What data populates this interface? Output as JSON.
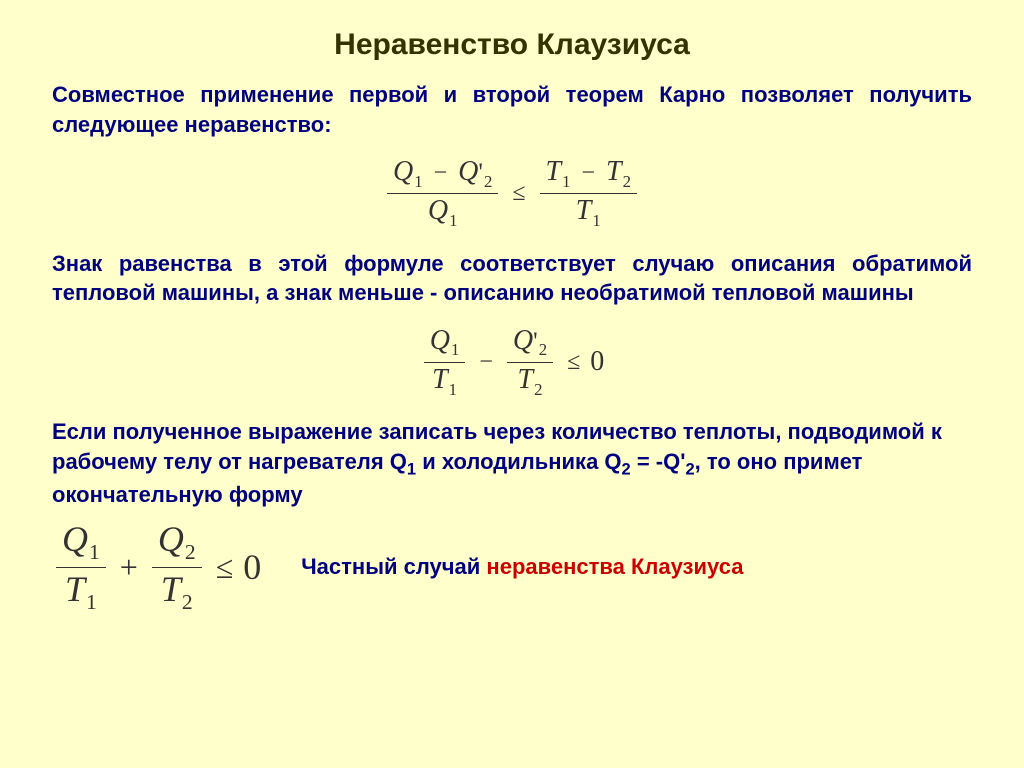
{
  "colors": {
    "background": "#ffffcc",
    "title": "#333300",
    "text": "#000080",
    "highlight": "#cc0000",
    "formula": "#333333"
  },
  "typography": {
    "title_fontsize": 30,
    "body_fontsize": 22,
    "formula_fontsize": 28,
    "final_formula_fontsize": 36,
    "font_family_body": "Arial",
    "font_family_formula": "Times New Roman"
  },
  "title": "Неравенство Клаузиуса",
  "para1": "Совместное применение первой и второй теорем Карно позволяет получить следующее неравенство:",
  "formula1": {
    "left_num_a": "Q",
    "left_num_a_sub": "1",
    "left_num_op": "−",
    "left_num_b": "Q",
    "left_num_b_prime": "'",
    "left_num_b_sub": "2",
    "left_den": "Q",
    "left_den_sub": "1",
    "cmp": "≤",
    "right_num_a": "T",
    "right_num_a_sub": "1",
    "right_num_op": "−",
    "right_num_b": "T",
    "right_num_b_sub": "2",
    "right_den": "T",
    "right_den_sub": "1"
  },
  "para2": "Знак равенства в этой формуле соответствует случаю описания обратимой тепловой машины, а знак меньше - описанию необратимой тепловой машины",
  "formula2": {
    "a_num": "Q",
    "a_num_sub": "1",
    "a_den": "T",
    "a_den_sub": "1",
    "mid_op": "−",
    "b_num": "Q",
    "b_num_prime": "'",
    "b_num_sub": "2",
    "b_den": "T",
    "b_den_sub": "2",
    "cmp": "≤",
    "rhs": "0"
  },
  "para3_a": "Если полученное выражение записать через количество теплоты, подводимой к рабочему телу от нагревателя Q",
  "para3_a_sub": "1",
  "para3_b": " и холодильника Q",
  "para3_b_sub": "2",
  "para3_c": " = -Q'",
  "para3_c_sub": "2",
  "para3_d": ", то оно примет окончательную форму",
  "formula3": {
    "a_num": "Q",
    "a_num_sub": "1",
    "a_den": "T",
    "a_den_sub": "1",
    "mid_op": "+",
    "b_num": "Q",
    "b_num_sub": "2",
    "b_den": "T",
    "b_den_sub": "2",
    "cmp": "≤",
    "rhs": "0"
  },
  "final_text_a": "Частный случай ",
  "final_text_b": "неравенства Клаузиуса"
}
